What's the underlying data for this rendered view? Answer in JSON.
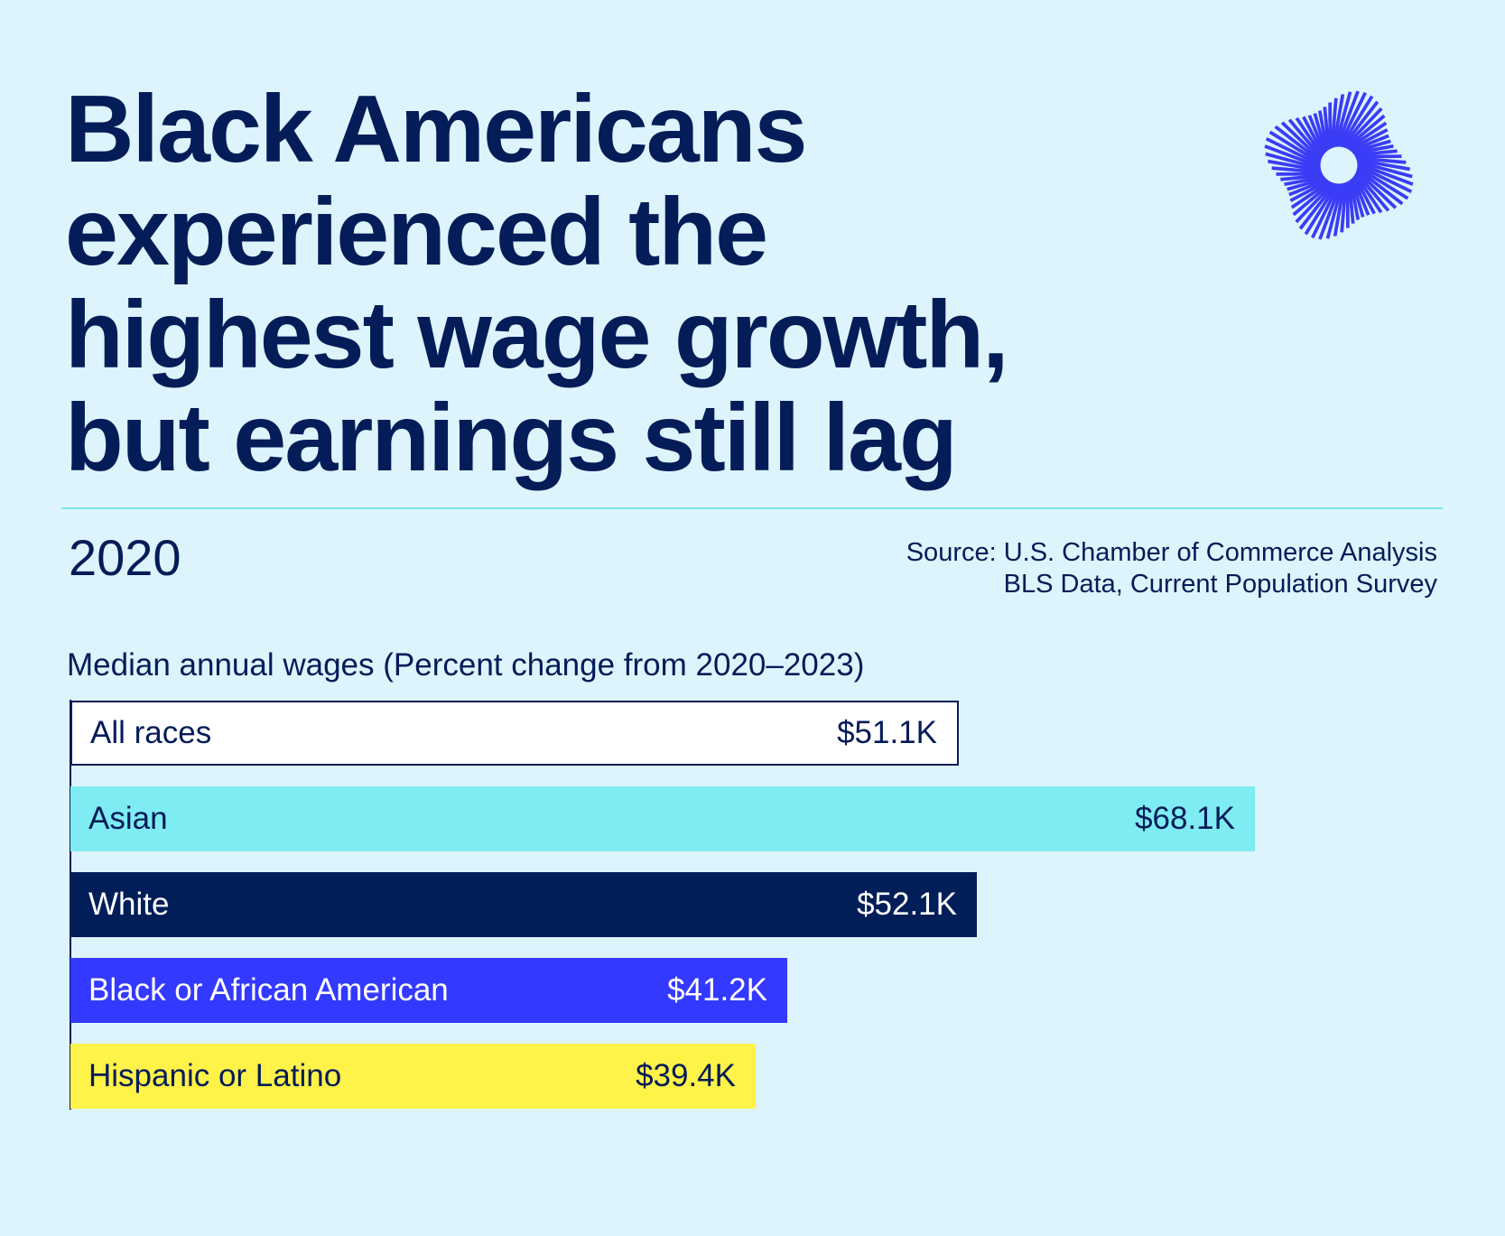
{
  "title": "Black Americans experienced the highest wage growth, but earnings still lag",
  "year": "2020",
  "source": {
    "line1": "Source: U.S. Chamber of Commerce Analysis",
    "line2": "BLS Data, Current Population Survey"
  },
  "logo_icon": "radial-burst-logo-icon",
  "chart_data": {
    "type": "bar",
    "orientation": "horizontal",
    "title": "Median annual wages (Percent change from 2020–2023)",
    "categories": [
      "All races",
      "Asian",
      "White",
      "Black or African American",
      "Hispanic or Latino"
    ],
    "values": [
      51.1,
      68.1,
      52.1,
      41.2,
      39.4
    ],
    "value_labels": [
      "$51.1K",
      "$68.1K",
      "$52.1K",
      "$41.2K",
      "$39.4K"
    ],
    "unit": "thousand USD",
    "bar_colors": [
      "outline",
      "#7eecf2",
      "#021e59",
      "#3439ff",
      "#fff248"
    ],
    "text_colors": [
      "#041c58",
      "#041c58",
      "#ffffff",
      "#ffffff",
      "#041c58"
    ],
    "xlim": [
      0,
      68.1
    ],
    "grid": false,
    "legend": "none"
  }
}
